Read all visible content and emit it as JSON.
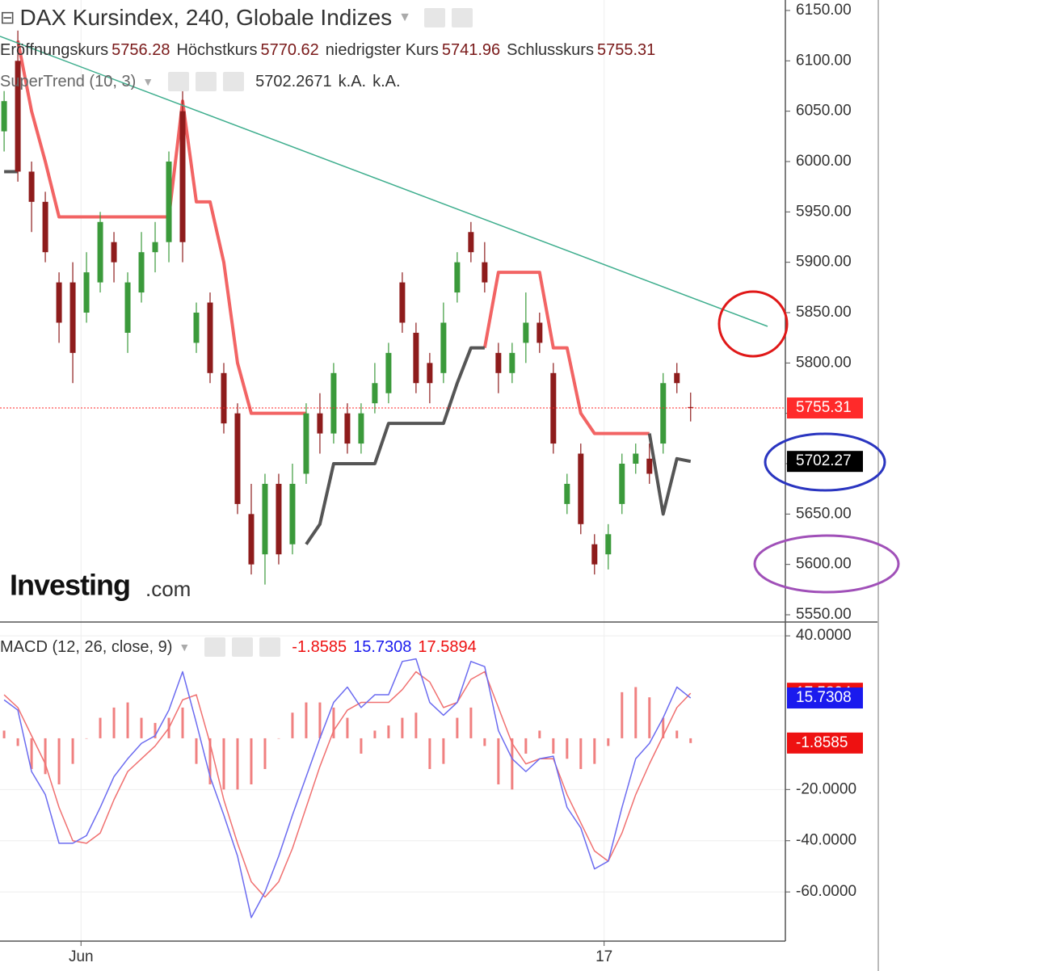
{
  "chart_data": [
    {
      "type": "candlestick",
      "title": "DAX Kursindex, 240, Globale Indizes",
      "ohlc_labels": [
        "Eröffnungskurs",
        "Höchstkurs",
        "niedrigster Kurs",
        "Schlusskurs"
      ],
      "open": [
        6030,
        6100,
        5990,
        5960,
        5880,
        5880,
        5850,
        5880,
        5920,
        5830,
        5870,
        5910,
        5920,
        6050,
        5820,
        5860,
        5790,
        5750,
        5650,
        5610,
        5680,
        5620,
        5690,
        5750,
        5730,
        5750,
        5720,
        5760,
        5770,
        5880,
        5830,
        5800,
        5790,
        5870,
        5930,
        5900,
        5810,
        5790,
        5820,
        5840,
        5790,
        5660,
        5710,
        5620,
        5610,
        5660,
        5700,
        5705,
        5720,
        5790,
        5756.28
      ],
      "high": [
        6070,
        6130,
        6000,
        5970,
        5890,
        5900,
        5910,
        5950,
        5930,
        5890,
        5930,
        5940,
        6010,
        6070,
        5860,
        5870,
        5800,
        5760,
        5680,
        5690,
        5690,
        5700,
        5760,
        5770,
        5800,
        5760,
        5760,
        5800,
        5820,
        5890,
        5840,
        5810,
        5860,
        5910,
        5940,
        5920,
        5820,
        5820,
        5870,
        5850,
        5800,
        5690,
        5720,
        5630,
        5640,
        5710,
        5720,
        5720,
        5790,
        5800,
        5770.62
      ],
      "low": [
        6010,
        5980,
        5930,
        5900,
        5820,
        5780,
        5840,
        5870,
        5880,
        5810,
        5860,
        5890,
        5900,
        5900,
        5810,
        5780,
        5730,
        5650,
        5590,
        5580,
        5600,
        5610,
        5680,
        5710,
        5720,
        5710,
        5710,
        5750,
        5760,
        5830,
        5770,
        5760,
        5780,
        5860,
        5900,
        5870,
        5770,
        5780,
        5800,
        5810,
        5710,
        5650,
        5630,
        5590,
        5595,
        5650,
        5690,
        5680,
        5710,
        5770,
        5741.96
      ],
      "close": [
        6060,
        5990,
        5960,
        5910,
        5840,
        5810,
        5890,
        5940,
        5900,
        5880,
        5910,
        5920,
        6000,
        5920,
        5850,
        5790,
        5740,
        5660,
        5600,
        5680,
        5610,
        5680,
        5750,
        5730,
        5790,
        5720,
        5750,
        5780,
        5810,
        5840,
        5780,
        5780,
        5840,
        5900,
        5910,
        5880,
        5790,
        5810,
        5840,
        5820,
        5720,
        5680,
        5640,
        5600,
        5630,
        5700,
        5710,
        5690,
        5780,
        5780,
        5755.31
      ],
      "up_color": "#3b9a3b",
      "down_color": "#8e1c1c",
      "last_color": "#ff2a2a",
      "supertrend": {
        "name": "SuperTrend (10, 3)",
        "bull": [
          5990,
          5990,
          null,
          null,
          null,
          null,
          null,
          null,
          null,
          null,
          null,
          null,
          null,
          null,
          null,
          null,
          null,
          null,
          null,
          null,
          null,
          null,
          5620,
          5640,
          5700,
          5700,
          5700,
          5700,
          5740,
          5740,
          5740,
          5740,
          5740,
          5780,
          5815,
          5815,
          null,
          null,
          null,
          null,
          null,
          null,
          null,
          null,
          null,
          null,
          null,
          5730,
          5650,
          5705,
          5702.2671
        ],
        "bear": [
          null,
          6120,
          6050,
          6000,
          5945,
          5945,
          5945,
          5945,
          5945,
          5945,
          5945,
          5945,
          5945,
          6060,
          5960,
          5960,
          5900,
          5800,
          5750,
          5750,
          5750,
          5750,
          5750,
          null,
          null,
          null,
          null,
          null,
          null,
          null,
          null,
          null,
          null,
          null,
          null,
          5815,
          5890,
          5890,
          5890,
          5890,
          5815,
          5815,
          5750,
          5730,
          5730,
          5730,
          5730,
          5730,
          null,
          null,
          null
        ],
        "bull_color": "#555555",
        "bear_color": "#f26464",
        "value_label": "5702.27",
        "extra": [
          "k.A.",
          "k.A."
        ]
      },
      "watermark": [
        "Investing",
        ".com"
      ],
      "xlim": [
        -0.3,
        56.9
      ],
      "ylim": [
        5542.8,
        6160.4
      ],
      "yticks": [
        {
          "value": 5550,
          "label": "5550.00"
        },
        {
          "value": 5600,
          "label": "5600.00"
        },
        {
          "value": 5650,
          "label": "5650.00"
        },
        {
          "value": 5700,
          "label": "5700.00"
        },
        {
          "value": 5750,
          "label": "5750.00"
        },
        {
          "value": 5800,
          "label": "5800.00"
        },
        {
          "value": 5850,
          "label": "5850.00"
        },
        {
          "value": 5900,
          "label": "5900.00"
        },
        {
          "value": 5950,
          "label": "5950.00"
        },
        {
          "value": 6000,
          "label": "6000.00"
        },
        {
          "value": 6050,
          "label": "6050.00"
        },
        {
          "value": 6100,
          "label": "6100.00"
        },
        {
          "value": 6150,
          "label": "6150.00"
        }
      ]
    },
    {
      "type": "macd",
      "name": "MACD (12, 26, close, 9)",
      "histogram": [
        3,
        -3,
        -12,
        -14,
        -18,
        -10,
        0,
        8,
        12,
        14,
        8,
        6,
        8,
        12,
        -10,
        -18,
        -20,
        -20,
        -18,
        -12,
        0,
        10,
        14,
        14,
        12,
        8,
        -6,
        3,
        5,
        8,
        10,
        -12,
        -10,
        8,
        12,
        -3,
        -18,
        -20,
        -6,
        3,
        -6,
        -8,
        -12,
        -10,
        -3,
        18,
        20,
        16,
        8,
        3,
        -1.8585
      ],
      "macd": [
        15,
        11,
        -13,
        -22,
        -41,
        -41,
        -38,
        -27,
        -15,
        -8,
        -2,
        1,
        11,
        26,
        6,
        -15,
        -30,
        -46,
        -70,
        -60,
        -46,
        -30,
        -15,
        0,
        14,
        20,
        12,
        17,
        17,
        30,
        31,
        14,
        9,
        14,
        30,
        28,
        3,
        -8,
        -13,
        -8,
        -7,
        -27,
        -35,
        -51,
        -48,
        -27,
        -8,
        -2,
        8,
        20,
        15.7308
      ],
      "signal": [
        17,
        12,
        1,
        -10,
        -27,
        -40,
        -41,
        -37,
        -24,
        -13,
        -8,
        -3,
        4,
        15,
        17,
        -2,
        -24,
        -41,
        -56,
        -62,
        -56,
        -43,
        -27,
        -11,
        3,
        11,
        14,
        14,
        14,
        19,
        26,
        22,
        12,
        14,
        23,
        26,
        12,
        -2,
        -10,
        -8,
        -8,
        -22,
        -33,
        -44,
        -48,
        -37,
        -22,
        -10,
        1,
        12,
        17.5894
      ],
      "histogram_color": "#f08080",
      "histogram_label_color": "#ee1111",
      "macd_color": "#6b6bf0",
      "macd_label_color": "#1a1aee",
      "signal_color": "#f07070",
      "signal_label_color": "#ee1111",
      "xlim": [
        -0.3,
        56.9
      ],
      "ylim": [
        -79.2,
        45.4
      ],
      "yticks": [
        {
          "value": 40,
          "label": "40.0000"
        },
        {
          "value": -20,
          "label": "-20.0000"
        },
        {
          "value": -40,
          "label": "-40.0000"
        },
        {
          "value": -60,
          "label": "-60.0000"
        }
      ],
      "xticks": [
        {
          "value": 5.6,
          "label": "Jun"
        },
        {
          "value": 43.7,
          "label": "17"
        }
      ]
    }
  ]
}
